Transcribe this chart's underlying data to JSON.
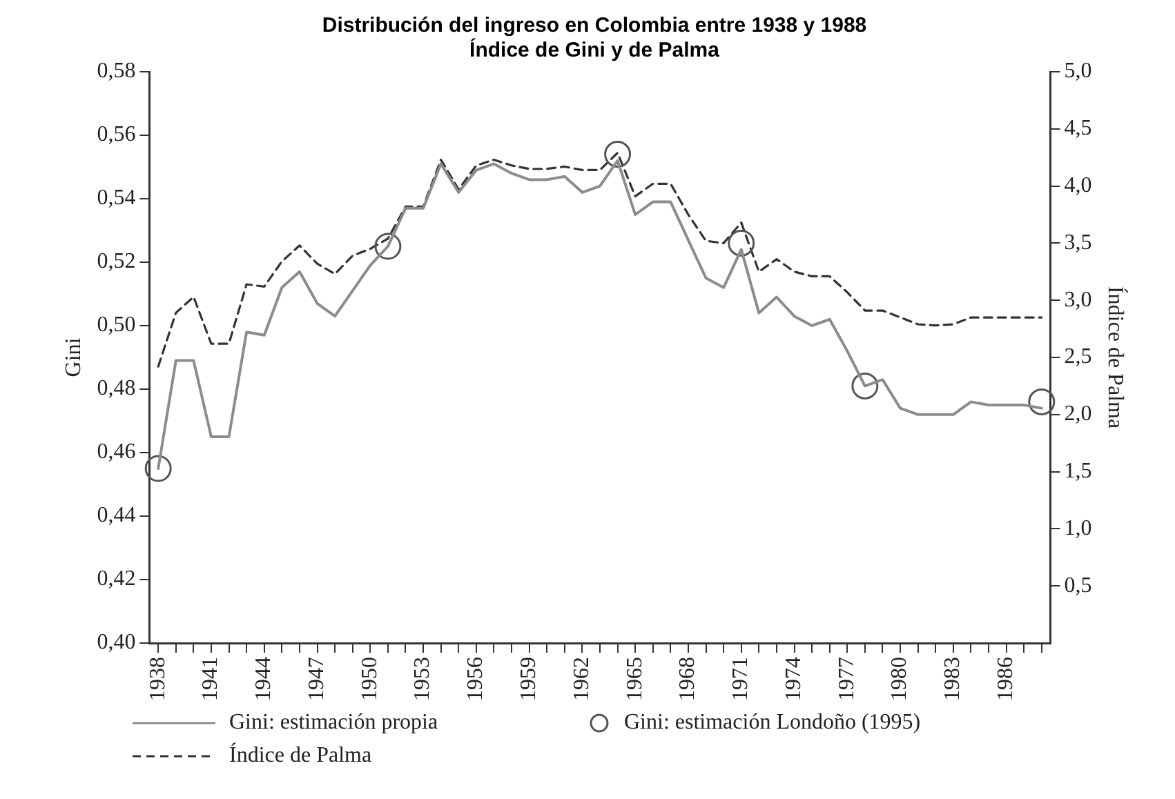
{
  "chart_data": {
    "type": "line",
    "title": "Distribución del ingreso en Colombia entre 1938 y 1988",
    "subtitle": "Índice de Gini y de Palma",
    "ylabel": "Gini",
    "y2label": "Índice de Palma",
    "categories": [
      "1938",
      null,
      null,
      "1941",
      null,
      null,
      "1944",
      null,
      null,
      "1947",
      null,
      null,
      "1950",
      null,
      null,
      "1953",
      null,
      null,
      "1956",
      null,
      null,
      "1959",
      null,
      null,
      "1962",
      null,
      null,
      "1965",
      null,
      null,
      "1968",
      null,
      null,
      "1971",
      null,
      null,
      "1974",
      null,
      null,
      "1977",
      null,
      null,
      "1980",
      null,
      null,
      "1983",
      null,
      null,
      "1986",
      null,
      null
    ],
    "ylim": [
      0.4,
      0.58
    ],
    "yticks": [
      {
        "value": 0.4,
        "label": "0,40"
      },
      {
        "value": 0.42,
        "label": "0,42"
      },
      {
        "value": 0.44,
        "label": "0,44"
      },
      {
        "value": 0.46,
        "label": "0,46"
      },
      {
        "value": 0.48,
        "label": "0,48"
      },
      {
        "value": 0.5,
        "label": "0,50"
      },
      {
        "value": 0.52,
        "label": "0,52"
      },
      {
        "value": 0.54,
        "label": "0,54"
      },
      {
        "value": 0.56,
        "label": "0,56"
      },
      {
        "value": 0.58,
        "label": "0,58"
      }
    ],
    "y2lim": [
      0,
      5
    ],
    "y2ticks": [
      {
        "value": 0.5,
        "label": "0,5"
      },
      {
        "value": 1,
        "label": "1,0"
      },
      {
        "value": 1.5,
        "label": "1,5"
      },
      {
        "value": 2,
        "label": "2,0"
      },
      {
        "value": 2.5,
        "label": "2,5"
      },
      {
        "value": 3,
        "label": "3,0"
      },
      {
        "value": 3.5,
        "label": "3,5"
      },
      {
        "value": 4,
        "label": "4,0"
      },
      {
        "value": 4.5,
        "label": "4,5"
      },
      {
        "value": 5,
        "label": "5,0"
      }
    ],
    "grid": false,
    "legend": "bottom",
    "series": [
      {
        "name": "Gini: estimación propia",
        "type": "line",
        "color": "#8c8c8c",
        "line_style": "solid",
        "marker": "none",
        "values": [
          0.455,
          0.489,
          0.489,
          0.465,
          0.465,
          0.498,
          0.497,
          0.512,
          0.517,
          0.507,
          0.503,
          0.511,
          0.519,
          0.525,
          0.537,
          0.537,
          0.551,
          0.542,
          0.549,
          0.551,
          0.548,
          0.546,
          0.546,
          0.547,
          0.542,
          0.544,
          0.552,
          0.535,
          0.539,
          0.539,
          0.527,
          0.515,
          0.512,
          0.524,
          0.504,
          0.509,
          0.503,
          0.5,
          0.502,
          0.492,
          0.481,
          0.483,
          0.474,
          0.472,
          0.472,
          0.472,
          0.476,
          0.475,
          0.475,
          0.475,
          0.474
        ]
      },
      {
        "name": "Gini: estimación Londoño (1995)",
        "type": "scatter",
        "color": "#555555",
        "marker": "circle",
        "values": [
          0.455,
          null,
          null,
          null,
          null,
          null,
          null,
          null,
          null,
          null,
          null,
          null,
          null,
          0.525,
          null,
          null,
          null,
          null,
          null,
          null,
          null,
          null,
          null,
          null,
          null,
          null,
          0.554,
          null,
          null,
          null,
          null,
          null,
          null,
          0.526,
          null,
          null,
          null,
          null,
          null,
          null,
          0.481,
          null,
          null,
          null,
          null,
          null,
          null,
          null,
          null,
          null,
          0.476
        ]
      },
      {
        "name": "Índice de Palma",
        "type": "line",
        "axis": "y2",
        "color": "#333333",
        "line_style": "dashed",
        "marker": "none",
        "values": [
          2.42,
          2.89,
          3.03,
          2.62,
          2.62,
          3.14,
          3.12,
          3.34,
          3.48,
          3.32,
          3.23,
          3.39,
          3.45,
          3.54,
          3.82,
          3.82,
          4.23,
          3.97,
          4.18,
          4.23,
          4.18,
          4.15,
          4.15,
          4.17,
          4.14,
          4.14,
          4.29,
          3.91,
          4.02,
          4.02,
          3.75,
          3.52,
          3.5,
          3.68,
          3.25,
          3.36,
          3.25,
          3.21,
          3.21,
          3.07,
          2.91,
          2.91,
          2.85,
          2.79,
          2.78,
          2.79,
          2.85,
          2.85,
          2.85,
          2.85,
          2.85
        ]
      }
    ]
  }
}
